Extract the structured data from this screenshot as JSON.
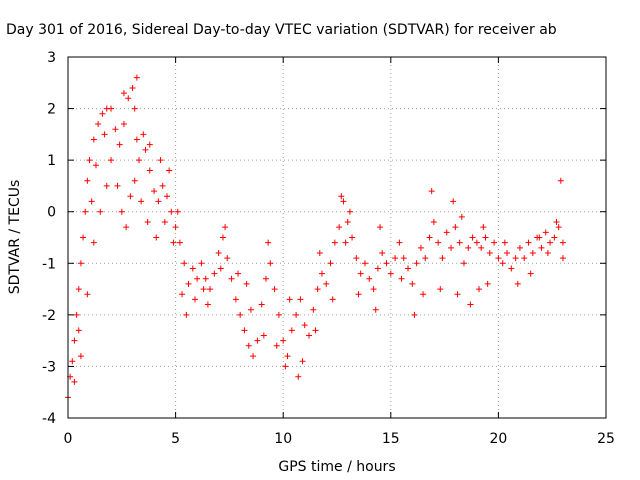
{
  "chart_data": {
    "type": "scatter",
    "title": "Day 301 of 2016, Sidereal Day-to-day VTEC variation (SDTVAR) for receiver ab",
    "xlabel": "GPS time / hours",
    "ylabel": "SDTVAR / TECUs",
    "xlim": [
      0,
      25
    ],
    "ylim": [
      -4,
      3
    ],
    "xticks": [
      0,
      5,
      10,
      15,
      20,
      25
    ],
    "xtick_labels": [
      "0",
      "5",
      "10",
      "15",
      "20",
      "25"
    ],
    "yticks": [
      -4,
      -3,
      -2,
      -1,
      0,
      1,
      2,
      3
    ],
    "ytick_labels": [
      "-4",
      "-3",
      "-2",
      "-1",
      "0",
      "1",
      "2",
      "3"
    ],
    "grid": true,
    "marker": "+",
    "color": "#ff0000",
    "series": [
      {
        "name": "SDTVAR",
        "points": [
          [
            0.0,
            -3.6
          ],
          [
            0.1,
            -3.2
          ],
          [
            0.2,
            -2.9
          ],
          [
            0.3,
            -2.5
          ],
          [
            0.4,
            -2.0
          ],
          [
            0.5,
            -1.5
          ],
          [
            0.6,
            -1.0
          ],
          [
            0.7,
            -0.5
          ],
          [
            0.8,
            0.0
          ],
          [
            0.9,
            0.6
          ],
          [
            1.0,
            1.0
          ],
          [
            1.2,
            1.4
          ],
          [
            1.4,
            1.7
          ],
          [
            1.6,
            1.9
          ],
          [
            1.8,
            2.0
          ],
          [
            2.0,
            2.0
          ],
          [
            2.2,
            1.6
          ],
          [
            2.4,
            1.3
          ],
          [
            2.6,
            1.7
          ],
          [
            2.8,
            2.2
          ],
          [
            3.0,
            2.4
          ],
          [
            3.1,
            2.0
          ],
          [
            3.2,
            1.4
          ],
          [
            3.3,
            1.0
          ],
          [
            3.5,
            1.5
          ],
          [
            3.6,
            1.2
          ],
          [
            3.8,
            0.8
          ],
          [
            4.0,
            0.4
          ],
          [
            4.2,
            0.2
          ],
          [
            4.4,
            0.5
          ],
          [
            4.6,
            0.3
          ],
          [
            4.8,
            0.0
          ],
          [
            5.0,
            -0.3
          ],
          [
            5.2,
            -0.6
          ],
          [
            5.4,
            -1.0
          ],
          [
            5.6,
            -1.4
          ],
          [
            5.8,
            -1.1
          ],
          [
            6.0,
            -1.3
          ],
          [
            6.2,
            -1.0
          ],
          [
            6.4,
            -1.3
          ],
          [
            6.6,
            -1.5
          ],
          [
            6.8,
            -1.2
          ],
          [
            7.0,
            -0.8
          ],
          [
            7.2,
            -0.5
          ],
          [
            7.4,
            -0.9
          ],
          [
            7.6,
            -1.3
          ],
          [
            7.8,
            -1.7
          ],
          [
            8.0,
            -2.0
          ],
          [
            8.2,
            -2.3
          ],
          [
            8.4,
            -2.6
          ],
          [
            8.6,
            -2.8
          ],
          [
            8.8,
            -2.5
          ],
          [
            9.0,
            -1.8
          ],
          [
            9.2,
            -1.3
          ],
          [
            9.4,
            -1.0
          ],
          [
            9.6,
            -1.5
          ],
          [
            9.8,
            -2.0
          ],
          [
            10.0,
            -2.5
          ],
          [
            10.2,
            -2.8
          ],
          [
            10.4,
            -2.3
          ],
          [
            10.6,
            -2.0
          ],
          [
            10.8,
            -1.7
          ],
          [
            11.0,
            -2.2
          ],
          [
            11.2,
            -2.4
          ],
          [
            11.4,
            -1.9
          ],
          [
            11.6,
            -1.5
          ],
          [
            11.8,
            -1.2
          ],
          [
            12.0,
            -1.4
          ],
          [
            12.2,
            -1.0
          ],
          [
            12.4,
            -0.6
          ],
          [
            12.6,
            -0.3
          ],
          [
            12.8,
            0.2
          ],
          [
            13.0,
            -0.2
          ],
          [
            13.2,
            -0.5
          ],
          [
            13.4,
            -0.9
          ],
          [
            13.6,
            -1.2
          ],
          [
            13.8,
            -1.0
          ],
          [
            14.0,
            -1.3
          ],
          [
            14.2,
            -1.5
          ],
          [
            14.4,
            -1.1
          ],
          [
            14.6,
            -0.8
          ],
          [
            14.8,
            -1.0
          ],
          [
            15.0,
            -1.2
          ],
          [
            15.2,
            -0.9
          ],
          [
            15.4,
            -0.6
          ],
          [
            15.6,
            -0.9
          ],
          [
            15.8,
            -1.1
          ],
          [
            16.0,
            -1.4
          ],
          [
            16.2,
            -1.0
          ],
          [
            16.4,
            -0.7
          ],
          [
            16.6,
            -0.9
          ],
          [
            16.8,
            -0.5
          ],
          [
            17.0,
            -0.2
          ],
          [
            17.2,
            -0.6
          ],
          [
            17.4,
            -0.9
          ],
          [
            17.6,
            -0.4
          ],
          [
            17.8,
            -0.7
          ],
          [
            18.0,
            -0.3
          ],
          [
            18.2,
            -0.6
          ],
          [
            18.4,
            -1.0
          ],
          [
            18.6,
            -0.7
          ],
          [
            18.8,
            -0.5
          ],
          [
            19.0,
            -0.6
          ],
          [
            19.2,
            -0.7
          ],
          [
            19.4,
            -0.5
          ],
          [
            19.6,
            -0.8
          ],
          [
            19.8,
            -0.6
          ],
          [
            20.0,
            -0.9
          ],
          [
            20.2,
            -1.0
          ],
          [
            20.4,
            -0.8
          ],
          [
            20.6,
            -1.1
          ],
          [
            20.8,
            -0.9
          ],
          [
            21.0,
            -0.7
          ],
          [
            21.2,
            -0.9
          ],
          [
            21.4,
            -0.6
          ],
          [
            21.6,
            -0.8
          ],
          [
            21.8,
            -0.5
          ],
          [
            22.0,
            -0.7
          ],
          [
            22.2,
            -0.4
          ],
          [
            22.4,
            -0.6
          ],
          [
            22.6,
            -0.5
          ],
          [
            22.8,
            -0.3
          ],
          [
            23.0,
            -0.6
          ],
          [
            0.6,
            -2.8
          ],
          [
            0.9,
            -1.6
          ],
          [
            1.2,
            -0.6
          ],
          [
            1.5,
            0.0
          ],
          [
            1.8,
            0.5
          ],
          [
            2.0,
            1.0
          ],
          [
            2.3,
            0.5
          ],
          [
            2.5,
            0.0
          ],
          [
            2.7,
            -0.3
          ],
          [
            2.9,
            0.3
          ],
          [
            3.1,
            0.6
          ],
          [
            3.4,
            0.2
          ],
          [
            3.7,
            -0.2
          ],
          [
            4.1,
            -0.5
          ],
          [
            4.5,
            -0.2
          ],
          [
            4.9,
            -0.6
          ],
          [
            5.3,
            -1.6
          ],
          [
            5.5,
            -2.0
          ],
          [
            5.9,
            -1.7
          ],
          [
            6.3,
            -1.5
          ],
          [
            7.1,
            -1.1
          ],
          [
            7.9,
            -1.2
          ],
          [
            8.5,
            -1.9
          ],
          [
            9.1,
            -2.4
          ],
          [
            9.7,
            -2.6
          ],
          [
            10.3,
            -1.7
          ],
          [
            10.9,
            -2.9
          ],
          [
            11.5,
            -2.3
          ],
          [
            12.3,
            -1.7
          ],
          [
            12.9,
            -0.6
          ],
          [
            13.5,
            -1.6
          ],
          [
            14.3,
            -1.9
          ],
          [
            15.5,
            -1.3
          ],
          [
            16.1,
            -2.0
          ],
          [
            16.5,
            -1.6
          ],
          [
            17.3,
            -1.5
          ],
          [
            18.1,
            -1.6
          ],
          [
            18.7,
            -1.8
          ],
          [
            19.1,
            -1.5
          ],
          [
            19.5,
            -1.4
          ],
          [
            20.3,
            -0.6
          ],
          [
            20.9,
            -1.4
          ],
          [
            21.5,
            -1.2
          ],
          [
            22.3,
            -0.8
          ],
          [
            22.9,
            0.6
          ],
          [
            23.0,
            -0.9
          ],
          [
            0.3,
            -3.3
          ],
          [
            0.5,
            -2.3
          ],
          [
            1.1,
            0.2
          ],
          [
            1.3,
            0.9
          ],
          [
            1.7,
            1.5
          ],
          [
            2.6,
            2.3
          ],
          [
            3.2,
            2.6
          ],
          [
            3.8,
            1.3
          ],
          [
            4.3,
            1.0
          ],
          [
            4.7,
            0.8
          ],
          [
            5.1,
            0.0
          ],
          [
            6.5,
            -1.8
          ],
          [
            7.3,
            -0.3
          ],
          [
            8.3,
            -1.4
          ],
          [
            9.3,
            -0.6
          ],
          [
            10.1,
            -3.0
          ],
          [
            10.7,
            -3.2
          ],
          [
            11.7,
            -0.8
          ],
          [
            12.7,
            0.3
          ],
          [
            13.1,
            0.0
          ],
          [
            14.5,
            -0.3
          ],
          [
            16.9,
            0.4
          ],
          [
            17.9,
            0.2
          ],
          [
            18.3,
            -0.1
          ],
          [
            19.3,
            -0.3
          ],
          [
            21.9,
            -0.5
          ],
          [
            22.7,
            -0.2
          ]
        ]
      }
    ]
  }
}
